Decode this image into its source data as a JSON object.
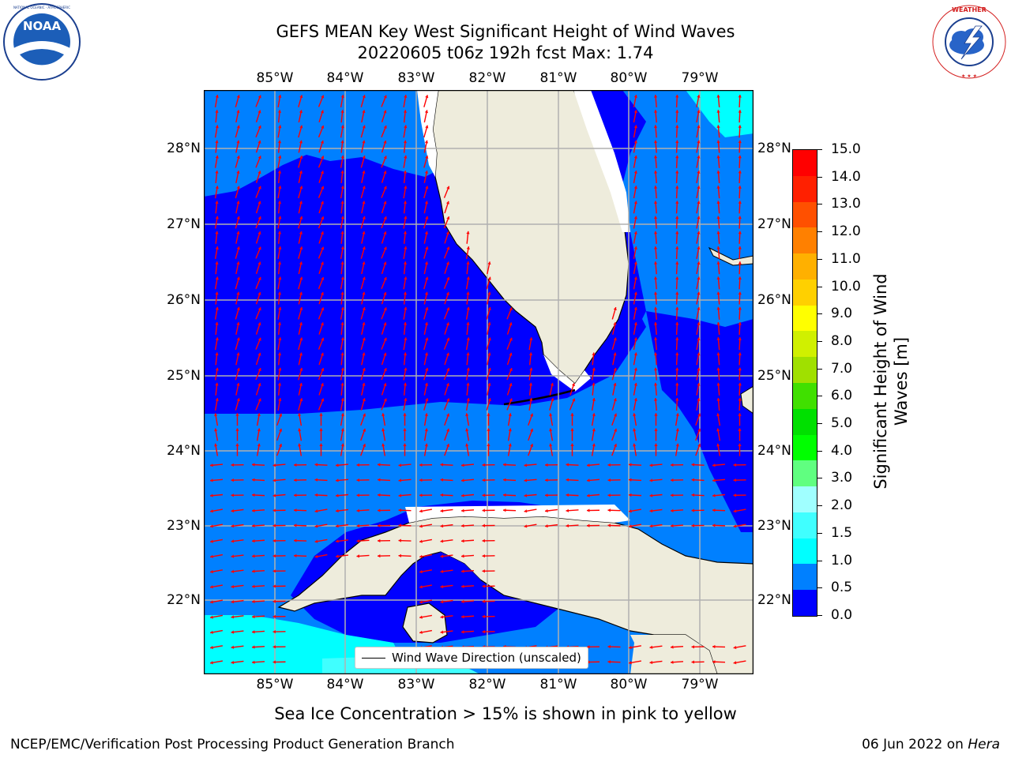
{
  "header": {
    "title": "GEFS MEAN Key West Significant Height of Wind Waves",
    "subtitle": "20220605 t06z 192h fcst   Max: 1.74"
  },
  "logos": {
    "left": {
      "icon": "noaa-logo-icon",
      "text": "NOAA",
      "ring_text": "NATIONAL OCEANIC AND ATMOSPHERIC ADMINISTRATION · U.S. DEPARTMENT OF COMMERCE"
    },
    "right": {
      "icon": "nws-logo-icon",
      "ring_text": "NATIONAL WEATHER SERVICE"
    }
  },
  "map": {
    "lon_ticks": [
      "85°W",
      "84°W",
      "83°W",
      "82°W",
      "81°W",
      "80°W",
      "79°W"
    ],
    "lat_ticks": [
      "28°N",
      "27°N",
      "26°N",
      "25°N",
      "24°N",
      "23°N",
      "22°N"
    ],
    "legend_label": "Wind Wave Direction (unscaled)",
    "colors": {
      "land": "#eeecdc",
      "level_0": "#0000ff",
      "level_05": "#0080ff",
      "level_10": "#00ffff",
      "level_15": "#40ffff",
      "arrow": "#ff0000",
      "grid": "#b0b0b0"
    }
  },
  "colorbar": {
    "label": "Significant Height of Wind Waves [m]",
    "label_line1": "Significant Height of Wind",
    "label_line2": "Waves [m]",
    "ticks": [
      "15.0",
      "14.0",
      "13.0",
      "12.0",
      "11.0",
      "10.0",
      "9.0",
      "8.0",
      "7.0",
      "6.0",
      "5.0",
      "4.0",
      "3.0",
      "2.0",
      "1.5",
      "1.0",
      "0.5",
      "0.0"
    ],
    "colors_bottom_to_top": [
      "#0000ff",
      "#0080ff",
      "#00ffff",
      "#40ffff",
      "#a0ffff",
      "#60ff80",
      "#00ff00",
      "#00e000",
      "#40e000",
      "#a0e000",
      "#d0f000",
      "#ffff00",
      "#ffd000",
      "#ffb000",
      "#ff8000",
      "#ff5000",
      "#ff2000",
      "#ff0000"
    ]
  },
  "notes": {
    "ice": "Sea Ice Concentration > 15% is shown in pink to yellow"
  },
  "footer": {
    "left": "NCEP/EMC/Verification Post Processing Product Generation Branch",
    "right_prefix": "06 Jun 2022 on ",
    "right_host": "Hera"
  }
}
